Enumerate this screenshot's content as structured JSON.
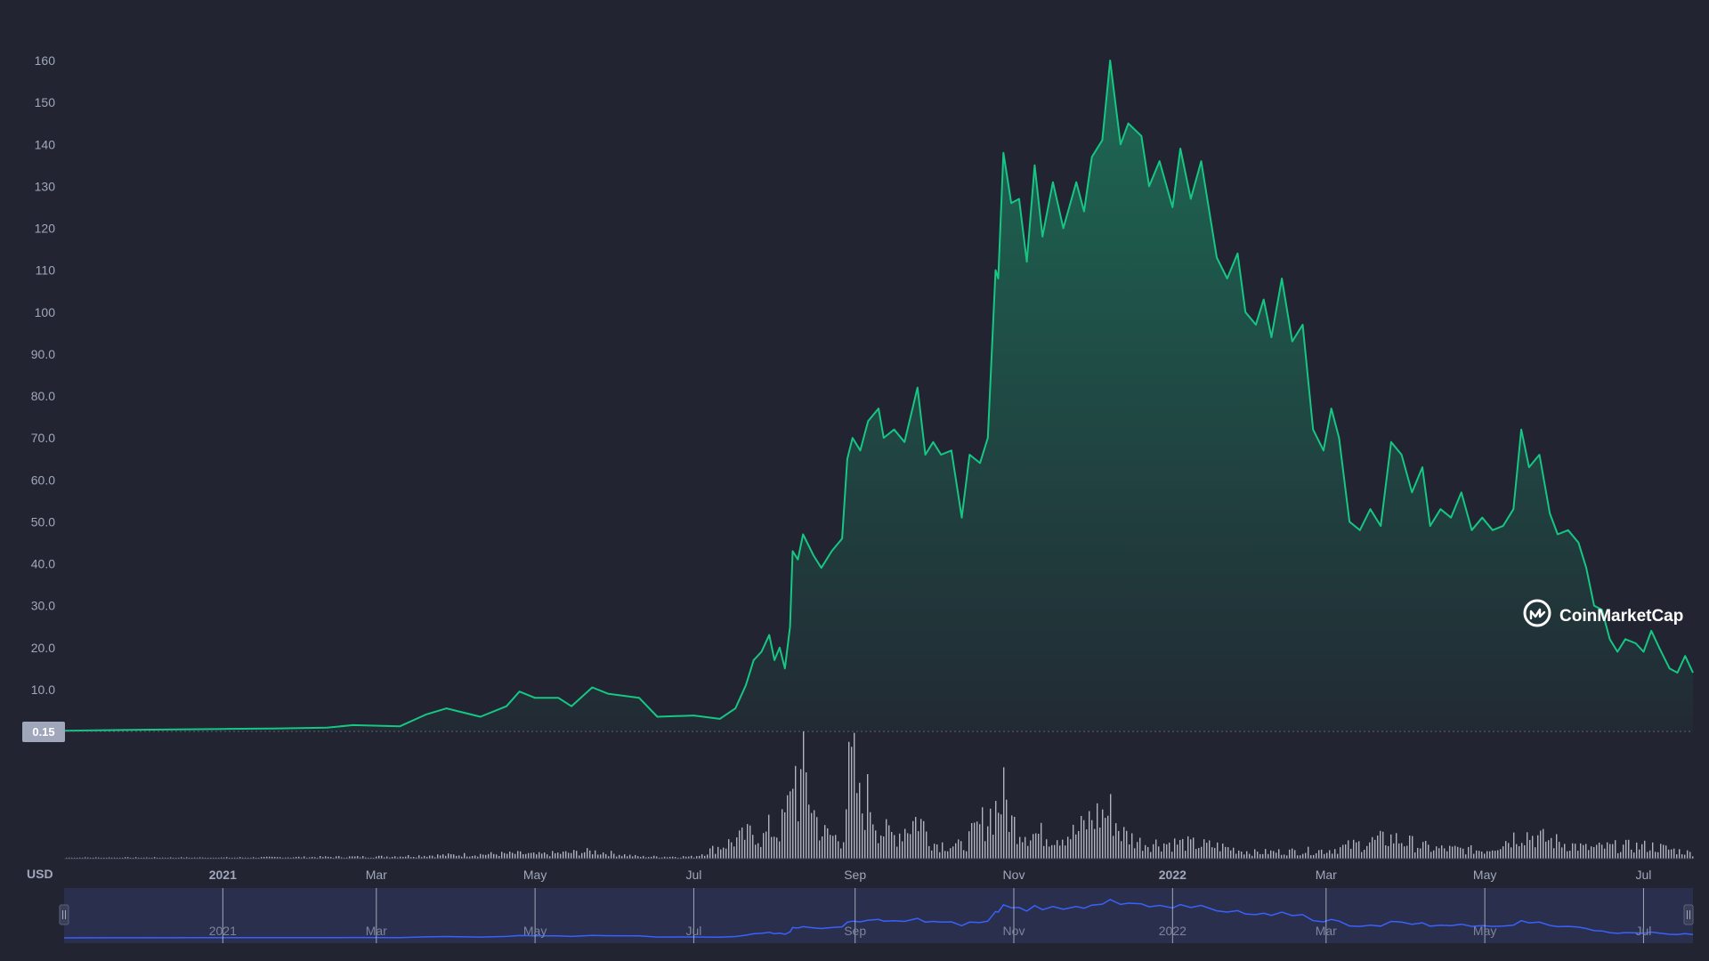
{
  "colors": {
    "background": "#222531",
    "price_line": "#16c784",
    "volume_bar": "#c9cdd8",
    "navigator_fill": "#2a2f4e",
    "navigator_line": "#3861fb",
    "axis_text": "#a1a7bb",
    "last_price_badge": "#a1a7bb"
  },
  "watermark": {
    "brand": "CoinMarketCap",
    "icon": "coinmarketcap-logo-icon"
  },
  "currency_label": "USD",
  "last_price_label": "0.15",
  "navigator": {
    "labels": [
      "2021",
      "Mar",
      "May",
      "Jul",
      "Sep",
      "Nov",
      "2022",
      "Mar",
      "May",
      "Jul"
    ],
    "handle_icons": [
      "drag-handle-icon",
      "drag-handle-icon"
    ]
  },
  "chart_data": {
    "type": "area",
    "x_axis": {
      "type": "datetime",
      "tick_labels": [
        "2021",
        "Mar",
        "May",
        "Jul",
        "Sep",
        "Nov",
        "2022",
        "Mar",
        "May",
        "Jul"
      ],
      "tick_dates": [
        "2021-01-01",
        "2021-03-01",
        "2021-05-01",
        "2021-07-01",
        "2021-09-01",
        "2021-11-01",
        "2022-01-01",
        "2022-03-01",
        "2022-05-01",
        "2022-07-01"
      ],
      "range": [
        "2020-11-01",
        "2022-07-20"
      ]
    },
    "y_axis": {
      "unit": "USD",
      "tick_labels": [
        "10.0",
        "20.0",
        "30.0",
        "40.0",
        "50.0",
        "60.0",
        "70.0",
        "80.0",
        "90.0",
        "100",
        "110",
        "120",
        "130",
        "140",
        "150",
        "160"
      ],
      "tick_values": [
        10,
        20,
        30,
        40,
        50,
        60,
        70,
        80,
        90,
        100,
        110,
        120,
        130,
        140,
        150,
        160
      ],
      "range": [
        0,
        160
      ]
    },
    "grid": false,
    "series": [
      {
        "kind": "price-area",
        "points": [
          [
            "2020-11-01",
            0.15
          ],
          [
            "2020-12-01",
            0.4
          ],
          [
            "2021-01-01",
            0.6
          ],
          [
            "2021-01-20",
            0.7
          ],
          [
            "2021-02-10",
            0.9
          ],
          [
            "2021-02-20",
            1.5
          ],
          [
            "2021-03-10",
            1.2
          ],
          [
            "2021-03-20",
            4.0
          ],
          [
            "2021-03-28",
            5.5
          ],
          [
            "2021-04-10",
            3.5
          ],
          [
            "2021-04-20",
            6.0
          ],
          [
            "2021-04-25",
            9.5
          ],
          [
            "2021-05-01",
            8.0
          ],
          [
            "2021-05-10",
            8.0
          ],
          [
            "2021-05-15",
            6.0
          ],
          [
            "2021-05-23",
            10.5
          ],
          [
            "2021-05-29",
            9.0
          ],
          [
            "2021-06-10",
            8.0
          ],
          [
            "2021-06-17",
            3.5
          ],
          [
            "2021-07-01",
            3.8
          ],
          [
            "2021-07-11",
            3.0
          ],
          [
            "2021-07-17",
            5.5
          ],
          [
            "2021-07-21",
            11.0
          ],
          [
            "2021-07-24",
            17.0
          ],
          [
            "2021-07-27",
            19.0
          ],
          [
            "2021-07-30",
            23.0
          ],
          [
            "2021-08-01",
            17.0
          ],
          [
            "2021-08-03",
            20.0
          ],
          [
            "2021-08-05",
            15.0
          ],
          [
            "2021-08-07",
            25.0
          ],
          [
            "2021-08-08",
            43.0
          ],
          [
            "2021-08-10",
            41.0
          ],
          [
            "2021-08-12",
            47.0
          ],
          [
            "2021-08-16",
            42.0
          ],
          [
            "2021-08-19",
            39.0
          ],
          [
            "2021-08-23",
            43.0
          ],
          [
            "2021-08-27",
            46.0
          ],
          [
            "2021-08-29",
            65.0
          ],
          [
            "2021-08-31",
            70.0
          ],
          [
            "2021-09-03",
            67.0
          ],
          [
            "2021-09-06",
            74.0
          ],
          [
            "2021-09-10",
            77.0
          ],
          [
            "2021-09-12",
            70.0
          ],
          [
            "2021-09-16",
            72.0
          ],
          [
            "2021-09-20",
            69.0
          ],
          [
            "2021-09-25",
            82.0
          ],
          [
            "2021-09-28",
            66.0
          ],
          [
            "2021-10-01",
            69.0
          ],
          [
            "2021-10-04",
            66.0
          ],
          [
            "2021-10-08",
            67.0
          ],
          [
            "2021-10-12",
            51.0
          ],
          [
            "2021-10-15",
            66.0
          ],
          [
            "2021-10-19",
            64.0
          ],
          [
            "2021-10-22",
            70.0
          ],
          [
            "2021-10-25",
            110.0
          ],
          [
            "2021-10-26",
            108.0
          ],
          [
            "2021-10-28",
            138.0
          ],
          [
            "2021-10-31",
            126.0
          ],
          [
            "2021-11-03",
            127.0
          ],
          [
            "2021-11-06",
            112.0
          ],
          [
            "2021-11-09",
            135.0
          ],
          [
            "2021-11-12",
            118.0
          ],
          [
            "2021-11-16",
            131.0
          ],
          [
            "2021-11-20",
            120.0
          ],
          [
            "2021-11-25",
            131.0
          ],
          [
            "2021-11-28",
            124.0
          ],
          [
            "2021-12-01",
            137.0
          ],
          [
            "2021-12-05",
            141.0
          ],
          [
            "2021-12-08",
            160.0
          ],
          [
            "2021-12-12",
            140.0
          ],
          [
            "2021-12-15",
            145.0
          ],
          [
            "2021-12-20",
            142.0
          ],
          [
            "2021-12-23",
            130.0
          ],
          [
            "2021-12-27",
            136.0
          ],
          [
            "2022-01-01",
            125.0
          ],
          [
            "2022-01-04",
            139.0
          ],
          [
            "2022-01-08",
            127.0
          ],
          [
            "2022-01-12",
            136.0
          ],
          [
            "2022-01-18",
            113.0
          ],
          [
            "2022-01-22",
            108.0
          ],
          [
            "2022-01-26",
            114.0
          ],
          [
            "2022-01-29",
            100.0
          ],
          [
            "2022-02-02",
            97.0
          ],
          [
            "2022-02-05",
            103.0
          ],
          [
            "2022-02-08",
            94.0
          ],
          [
            "2022-02-12",
            108.0
          ],
          [
            "2022-02-16",
            93.0
          ],
          [
            "2022-02-20",
            97.0
          ],
          [
            "2022-02-24",
            72.0
          ],
          [
            "2022-02-28",
            67.0
          ],
          [
            "2022-03-03",
            77.0
          ],
          [
            "2022-03-06",
            70.0
          ],
          [
            "2022-03-10",
            50.0
          ],
          [
            "2022-03-14",
            48.0
          ],
          [
            "2022-03-18",
            53.0
          ],
          [
            "2022-03-22",
            49.0
          ],
          [
            "2022-03-26",
            69.0
          ],
          [
            "2022-03-30",
            66.0
          ],
          [
            "2022-04-03",
            57.0
          ],
          [
            "2022-04-07",
            63.0
          ],
          [
            "2022-04-10",
            49.0
          ],
          [
            "2022-04-14",
            53.0
          ],
          [
            "2022-04-18",
            51.0
          ],
          [
            "2022-04-22",
            57.0
          ],
          [
            "2022-04-26",
            48.0
          ],
          [
            "2022-04-30",
            51.0
          ],
          [
            "2022-05-04",
            48.0
          ],
          [
            "2022-05-08",
            49.0
          ],
          [
            "2022-05-12",
            53.0
          ],
          [
            "2022-05-15",
            72.0
          ],
          [
            "2022-05-18",
            63.0
          ],
          [
            "2022-05-22",
            66.0
          ],
          [
            "2022-05-26",
            52.0
          ],
          [
            "2022-05-29",
            47.0
          ],
          [
            "2022-06-02",
            48.0
          ],
          [
            "2022-06-06",
            45.0
          ],
          [
            "2022-06-09",
            39.0
          ],
          [
            "2022-06-12",
            30.0
          ],
          [
            "2022-06-15",
            29.0
          ],
          [
            "2022-06-18",
            22.0
          ],
          [
            "2022-06-21",
            19.0
          ],
          [
            "2022-06-24",
            22.0
          ],
          [
            "2022-06-28",
            21.0
          ],
          [
            "2022-07-01",
            19.0
          ],
          [
            "2022-07-04",
            24.0
          ],
          [
            "2022-07-07",
            20.0
          ],
          [
            "2022-07-11",
            15.0
          ],
          [
            "2022-07-14",
            14.0
          ],
          [
            "2022-07-17",
            18.0
          ],
          [
            "2022-07-20",
            14.0
          ]
        ]
      },
      {
        "kind": "volume-bars",
        "relative_scale": [
          0,
          1
        ],
        "points": [
          [
            "2020-11-01",
            0.01
          ],
          [
            "2021-01-01",
            0.01
          ],
          [
            "2021-03-01",
            0.02
          ],
          [
            "2021-04-25",
            0.05
          ],
          [
            "2021-05-01",
            0.04
          ],
          [
            "2021-05-23",
            0.07
          ],
          [
            "2021-06-10",
            0.02
          ],
          [
            "2021-07-01",
            0.02
          ],
          [
            "2021-07-21",
            0.22
          ],
          [
            "2021-07-24",
            0.27
          ],
          [
            "2021-07-27",
            0.18
          ],
          [
            "2021-07-30",
            0.3
          ],
          [
            "2021-08-01",
            0.25
          ],
          [
            "2021-08-03",
            0.28
          ],
          [
            "2021-08-05",
            0.42
          ],
          [
            "2021-08-07",
            0.55
          ],
          [
            "2021-08-08",
            1.0
          ],
          [
            "2021-08-10",
            0.6
          ],
          [
            "2021-08-12",
            0.85
          ],
          [
            "2021-08-16",
            0.45
          ],
          [
            "2021-08-19",
            0.25
          ],
          [
            "2021-08-23",
            0.22
          ],
          [
            "2021-08-27",
            0.18
          ],
          [
            "2021-08-29",
            0.75
          ],
          [
            "2021-08-31",
            0.9
          ],
          [
            "2021-09-03",
            0.45
          ],
          [
            "2021-09-06",
            0.6
          ],
          [
            "2021-09-10",
            0.28
          ],
          [
            "2021-09-16",
            0.22
          ],
          [
            "2021-09-25",
            0.4
          ],
          [
            "2021-10-01",
            0.15
          ],
          [
            "2021-10-12",
            0.12
          ],
          [
            "2021-10-25",
            0.5
          ],
          [
            "2021-10-28",
            0.6
          ],
          [
            "2021-10-31",
            0.35
          ],
          [
            "2021-11-06",
            0.25
          ],
          [
            "2021-11-16",
            0.22
          ],
          [
            "2021-11-25",
            0.25
          ],
          [
            "2021-12-01",
            0.4
          ],
          [
            "2021-12-08",
            0.45
          ],
          [
            "2021-12-12",
            0.25
          ],
          [
            "2021-12-20",
            0.15
          ],
          [
            "2022-01-04",
            0.15
          ],
          [
            "2022-01-18",
            0.12
          ],
          [
            "2022-02-01",
            0.06
          ],
          [
            "2022-03-01",
            0.08
          ],
          [
            "2022-03-26",
            0.2
          ],
          [
            "2022-04-10",
            0.1
          ],
          [
            "2022-05-01",
            0.08
          ],
          [
            "2022-05-15",
            0.25
          ],
          [
            "2022-05-22",
            0.2
          ],
          [
            "2022-06-09",
            0.1
          ],
          [
            "2022-06-21",
            0.12
          ],
          [
            "2022-07-04",
            0.12
          ],
          [
            "2022-07-20",
            0.05
          ]
        ]
      }
    ]
  }
}
